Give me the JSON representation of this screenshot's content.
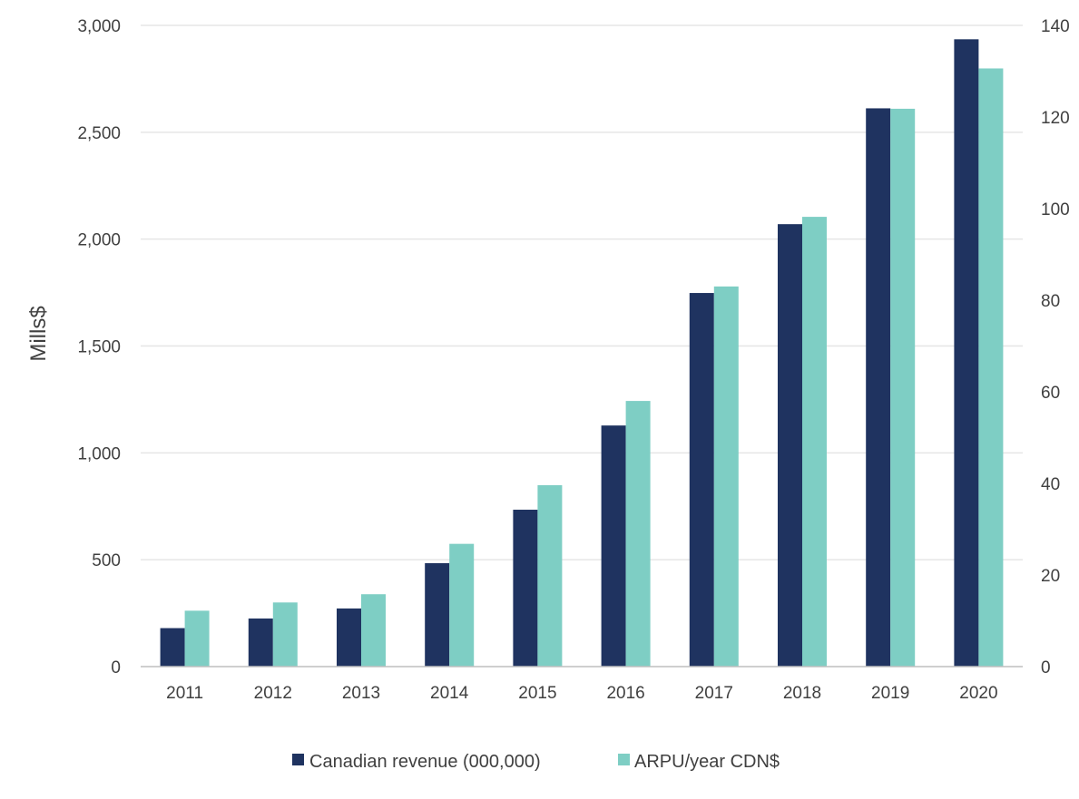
{
  "chart_data": {
    "type": "bar",
    "categories": [
      "2011",
      "2012",
      "2013",
      "2014",
      "2015",
      "2016",
      "2017",
      "2018",
      "2019",
      "2020"
    ],
    "series": [
      {
        "name": "Canadian revenue (000,000)",
        "axis": "left",
        "color": "#1f3360",
        "values": [
          180,
          225,
          272,
          484,
          734,
          1128,
          1748,
          2070,
          2612,
          2935
        ]
      },
      {
        "name": "ARPU/year CDN$",
        "axis": "right",
        "color": "#7ecec4",
        "values": [
          12.2,
          14,
          15.8,
          26.8,
          39.6,
          58,
          83,
          98.2,
          121.8,
          130.6
        ]
      }
    ],
    "ylabel": "Mills$",
    "ylabel_right": "",
    "xlabel": "",
    "title": "",
    "ylim": [
      0,
      3000
    ],
    "ylim_right": [
      0,
      140
    ],
    "yticks": [
      0,
      500,
      1000,
      1500,
      2000,
      2500,
      3000
    ],
    "yticks_labels": [
      "0",
      "500",
      "1,000",
      "1,500",
      "2,000",
      "2,500",
      "3,000"
    ],
    "yticks_right": [
      0,
      20,
      40,
      60,
      80,
      100,
      120,
      140
    ],
    "yticks_right_labels": [
      "0",
      "20",
      "40",
      "60",
      "80",
      "100",
      "120",
      "140"
    ],
    "grid": true,
    "legend_position": "bottom"
  }
}
